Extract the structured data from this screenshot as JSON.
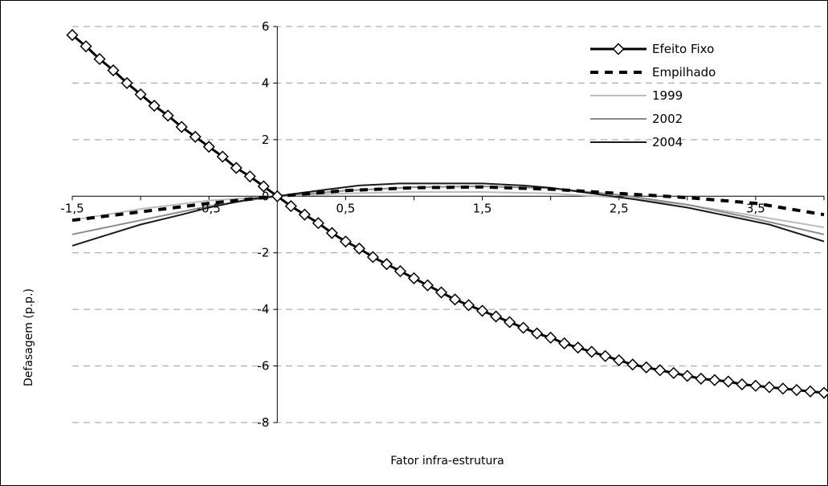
{
  "chart_data": {
    "type": "line",
    "xlabel": "Fator infra-estrutura",
    "ylabel": "Defasagem (p.p.)",
    "xlim": [
      -1.5,
      4.0
    ],
    "ylim": [
      -8,
      6
    ],
    "x_ticks": [
      -1.5,
      -0.5,
      0.5,
      1.5,
      2.5,
      3.5
    ],
    "x_tick_labels": [
      "-1,5",
      "-0,5",
      "0,5",
      "1,5",
      "2,5",
      "3,5"
    ],
    "y_ticks": [
      6,
      4,
      2,
      0,
      -2,
      -4,
      -6,
      -8
    ],
    "y_tick_labels": [
      "6",
      "4",
      "2",
      "0",
      "-2",
      "-4",
      "-6",
      "-8"
    ],
    "grid": "horizontal dashed",
    "legend_position": "top-right",
    "series": [
      {
        "name": "Efeito Fixo",
        "style": "solid-diamond",
        "color": "#000000",
        "x": [
          -1.5,
          -1.4,
          -1.3,
          -1.2,
          -1.1,
          -1.0,
          -0.9,
          -0.8,
          -0.7,
          -0.6,
          -0.5,
          -0.4,
          -0.3,
          -0.2,
          -0.1,
          0.0,
          0.1,
          0.2,
          0.3,
          0.4,
          0.5,
          0.6,
          0.7,
          0.8,
          0.9,
          1.0,
          1.1,
          1.2,
          1.3,
          1.4,
          1.5,
          1.6,
          1.7,
          1.8,
          1.9,
          2.0,
          2.1,
          2.2,
          2.3,
          2.4,
          2.5,
          2.6,
          2.7,
          2.8,
          2.9,
          3.0,
          3.1,
          3.2,
          3.3,
          3.4,
          3.5,
          3.6,
          3.7,
          3.8,
          3.9,
          4.0
        ],
        "y": [
          5.7,
          5.3,
          4.85,
          4.45,
          4.0,
          3.6,
          3.2,
          2.85,
          2.45,
          2.1,
          1.75,
          1.4,
          1.0,
          0.7,
          0.35,
          0.0,
          -0.35,
          -0.65,
          -0.95,
          -1.3,
          -1.6,
          -1.85,
          -2.15,
          -2.4,
          -2.65,
          -2.9,
          -3.15,
          -3.4,
          -3.65,
          -3.85,
          -4.05,
          -4.25,
          -4.45,
          -4.65,
          -4.85,
          -5.0,
          -5.2,
          -5.35,
          -5.5,
          -5.65,
          -5.8,
          -5.95,
          -6.05,
          -6.15,
          -6.25,
          -6.35,
          -6.45,
          -6.5,
          -6.55,
          -6.65,
          -6.7,
          -6.75,
          -6.8,
          -6.85,
          -6.9,
          -6.95
        ]
      },
      {
        "name": "Empilhado",
        "style": "dashed-thick",
        "color": "#000000",
        "x": [
          -1.5,
          -1.0,
          -0.5,
          0.0,
          0.5,
          1.0,
          1.5,
          2.0,
          2.5,
          3.0,
          3.5,
          4.0
        ],
        "y": [
          -0.85,
          -0.55,
          -0.25,
          0.0,
          0.2,
          0.3,
          0.33,
          0.25,
          0.1,
          -0.05,
          -0.25,
          -0.65
        ]
      },
      {
        "name": "1999",
        "style": "solid-thin",
        "color": "#bdbdbd",
        "x": [
          -1.5,
          -1.0,
          -0.5,
          0.0,
          0.5,
          1.0,
          1.5,
          2.0,
          2.5,
          3.0,
          3.5,
          4.0
        ],
        "y": [
          -0.85,
          -0.45,
          -0.15,
          0.0,
          0.1,
          0.15,
          0.15,
          0.1,
          -0.05,
          -0.3,
          -0.7,
          -1.1
        ]
      },
      {
        "name": "2002",
        "style": "solid-thin",
        "color": "#8c8c8c",
        "x": [
          -1.5,
          -1.0,
          -0.5,
          0.0,
          0.5,
          1.0,
          1.5,
          2.0,
          2.5,
          3.0,
          3.5,
          4.0
        ],
        "y": [
          -1.35,
          -0.85,
          -0.35,
          0.0,
          0.2,
          0.32,
          0.35,
          0.28,
          0.05,
          -0.3,
          -0.8,
          -1.35
        ]
      },
      {
        "name": "2004",
        "style": "solid-thin",
        "color": "#1a1a1a",
        "x": [
          -1.5,
          -1.3,
          -1.0,
          -0.7,
          -0.5,
          -0.2,
          0.0,
          0.3,
          0.6,
          0.9,
          1.2,
          1.5,
          1.8,
          2.0,
          2.3,
          2.6,
          3.0,
          3.3,
          3.6,
          3.9,
          4.0
        ],
        "y": [
          -1.75,
          -1.45,
          -1.0,
          -0.65,
          -0.4,
          -0.1,
          0.0,
          0.2,
          0.38,
          0.45,
          0.45,
          0.45,
          0.38,
          0.3,
          0.1,
          -0.1,
          -0.4,
          -0.7,
          -1.0,
          -1.45,
          -1.6
        ]
      }
    ]
  }
}
